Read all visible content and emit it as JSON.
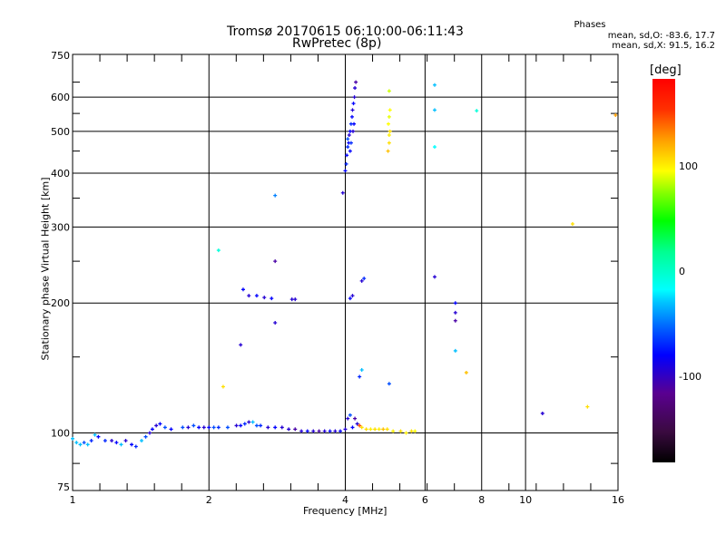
{
  "header": {
    "title": "Tromsø 20170615 06:10:00-06:11:43",
    "subtitle": "RwPretec (8p)",
    "phases_title": "Phases",
    "phases_o": "mean, sd,O: -83.6, 17.7",
    "phases_x": "mean, sd,X:  91.5, 16.2"
  },
  "colorbar": {
    "unit": "[deg]",
    "ticks": [
      "100",
      "0",
      "-100"
    ],
    "range": [
      -180,
      180
    ]
  },
  "chart_data": {
    "type": "scatter",
    "title": "Tromsø 20170615 06:10:00-06:11:43",
    "xlabel": "Frequency [MHz]",
    "ylabel": "Stationary phase Virtual Height [km]",
    "xscale": "log",
    "yscale": "log",
    "xlim": [
      1,
      16
    ],
    "ylim": [
      75,
      750
    ],
    "xticks": [
      "1",
      "2",
      "4",
      "6",
      "8",
      "10",
      "16"
    ],
    "yticks": [
      "75",
      "100",
      "200",
      "300",
      "400",
      "500",
      "600",
      "750"
    ],
    "grid": true,
    "points_fields": [
      "frequency_MHz",
      "height_km",
      "phase_deg"
    ],
    "points": [
      [
        1.0,
        97,
        -60
      ],
      [
        1.02,
        95,
        -60
      ],
      [
        1.04,
        94,
        -60
      ],
      [
        1.06,
        95,
        -80
      ],
      [
        1.08,
        94,
        -60
      ],
      [
        1.1,
        96,
        -90
      ],
      [
        1.12,
        99,
        -60
      ],
      [
        1.14,
        98,
        -100
      ],
      [
        1.18,
        96,
        -90
      ],
      [
        1.22,
        96,
        -110
      ],
      [
        1.25,
        95,
        -100
      ],
      [
        1.28,
        94,
        -60
      ],
      [
        1.31,
        96,
        -110
      ],
      [
        1.35,
        94,
        -100
      ],
      [
        1.38,
        93,
        -90
      ],
      [
        1.42,
        96,
        -60
      ],
      [
        1.45,
        98,
        -80
      ],
      [
        1.48,
        100,
        -110
      ],
      [
        1.5,
        102,
        -100
      ],
      [
        1.53,
        104,
        -110
      ],
      [
        1.56,
        105,
        -100
      ],
      [
        1.6,
        103,
        -80
      ],
      [
        1.65,
        102,
        -100
      ],
      [
        1.75,
        103,
        -80
      ],
      [
        1.8,
        103,
        -110
      ],
      [
        1.85,
        104,
        -80
      ],
      [
        1.9,
        103,
        -100
      ],
      [
        1.95,
        103,
        -110
      ],
      [
        2.0,
        103,
        -100
      ],
      [
        2.05,
        103,
        -80
      ],
      [
        2.1,
        103,
        -90
      ],
      [
        2.2,
        103,
        -80
      ],
      [
        2.3,
        104,
        -110
      ],
      [
        2.35,
        104,
        -100
      ],
      [
        2.4,
        105,
        -90
      ],
      [
        2.45,
        106,
        -110
      ],
      [
        2.5,
        106,
        -60
      ],
      [
        2.55,
        104,
        -80
      ],
      [
        2.6,
        104,
        -90
      ],
      [
        2.7,
        103,
        -110
      ],
      [
        2.8,
        103,
        -100
      ],
      [
        2.9,
        103,
        -110
      ],
      [
        3.0,
        102,
        -110
      ],
      [
        3.1,
        102,
        -120
      ],
      [
        3.2,
        101,
        -110
      ],
      [
        3.3,
        101,
        -100
      ],
      [
        3.4,
        101,
        -110
      ],
      [
        3.5,
        101,
        -120
      ],
      [
        3.6,
        101,
        -110
      ],
      [
        3.7,
        101,
        -100
      ],
      [
        3.8,
        101,
        -110
      ],
      [
        3.9,
        101,
        -100
      ],
      [
        4.0,
        102,
        -110
      ],
      [
        4.05,
        108,
        -110
      ],
      [
        4.1,
        110,
        -80
      ],
      [
        4.15,
        103,
        -100
      ],
      [
        4.2,
        108,
        -120
      ],
      [
        4.25,
        105,
        -110
      ],
      [
        4.3,
        104,
        140
      ],
      [
        4.35,
        103,
        100
      ],
      [
        4.45,
        102,
        100
      ],
      [
        4.55,
        102,
        95
      ],
      [
        4.65,
        102,
        100
      ],
      [
        4.75,
        102,
        95
      ],
      [
        4.85,
        102,
        110
      ],
      [
        4.95,
        102,
        100
      ],
      [
        5.1,
        101,
        95
      ],
      [
        5.3,
        101,
        100
      ],
      [
        5.45,
        100,
        95
      ],
      [
        5.6,
        101,
        100
      ],
      [
        5.7,
        101,
        90
      ],
      [
        4.0,
        405,
        -100
      ],
      [
        4.02,
        420,
        -90
      ],
      [
        4.03,
        440,
        -100
      ],
      [
        4.05,
        460,
        -90
      ],
      [
        4.07,
        470,
        -100
      ],
      [
        4.08,
        490,
        -110
      ],
      [
        4.1,
        500,
        -100
      ],
      [
        4.12,
        520,
        -90
      ],
      [
        4.14,
        540,
        -100
      ],
      [
        4.15,
        560,
        -110
      ],
      [
        4.17,
        580,
        -100
      ],
      [
        4.19,
        600,
        -110
      ],
      [
        4.2,
        630,
        -110
      ],
      [
        4.22,
        650,
        -120
      ],
      [
        4.05,
        480,
        -80
      ],
      [
        4.1,
        450,
        -100
      ],
      [
        4.16,
        500,
        -110
      ],
      [
        4.12,
        470,
        -90
      ],
      [
        4.18,
        520,
        -100
      ],
      [
        4.97,
        450,
        110
      ],
      [
        5.0,
        470,
        100
      ],
      [
        5.0,
        490,
        95
      ],
      [
        5.02,
        500,
        100
      ],
      [
        4.98,
        520,
        90
      ],
      [
        5.0,
        540,
        85
      ],
      [
        5.02,
        560,
        90
      ],
      [
        5.0,
        620,
        80
      ],
      [
        2.38,
        215,
        -100
      ],
      [
        2.45,
        208,
        -110
      ],
      [
        2.55,
        208,
        -100
      ],
      [
        2.65,
        206,
        -110
      ],
      [
        2.75,
        205,
        -100
      ],
      [
        3.05,
        204,
        -110
      ],
      [
        3.1,
        204,
        -110
      ],
      [
        4.1,
        205,
        -100
      ],
      [
        4.15,
        208,
        -110
      ],
      [
        4.35,
        225,
        -110
      ],
      [
        4.4,
        228,
        -90
      ],
      [
        2.1,
        265,
        -40
      ],
      [
        2.15,
        128,
        100
      ],
      [
        2.35,
        160,
        -110
      ],
      [
        2.8,
        355,
        -70
      ],
      [
        2.8,
        250,
        -120
      ],
      [
        2.8,
        180,
        -110
      ],
      [
        3.95,
        360,
        -110
      ],
      [
        4.3,
        135,
        -90
      ],
      [
        4.35,
        140,
        -60
      ],
      [
        5.0,
        130,
        -80
      ],
      [
        6.3,
        640,
        -60
      ],
      [
        6.3,
        560,
        -60
      ],
      [
        6.3,
        460,
        -50
      ],
      [
        6.3,
        230,
        -110
      ],
      [
        7.0,
        200,
        -100
      ],
      [
        7.0,
        190,
        -110
      ],
      [
        7.0,
        182,
        -120
      ],
      [
        7.0,
        155,
        -60
      ],
      [
        7.4,
        138,
        110
      ],
      [
        7.8,
        558,
        -40
      ],
      [
        10.9,
        111,
        -110
      ],
      [
        12.7,
        305,
        100
      ],
      [
        13.7,
        115,
        100
      ],
      [
        15.8,
        545,
        120
      ]
    ]
  }
}
